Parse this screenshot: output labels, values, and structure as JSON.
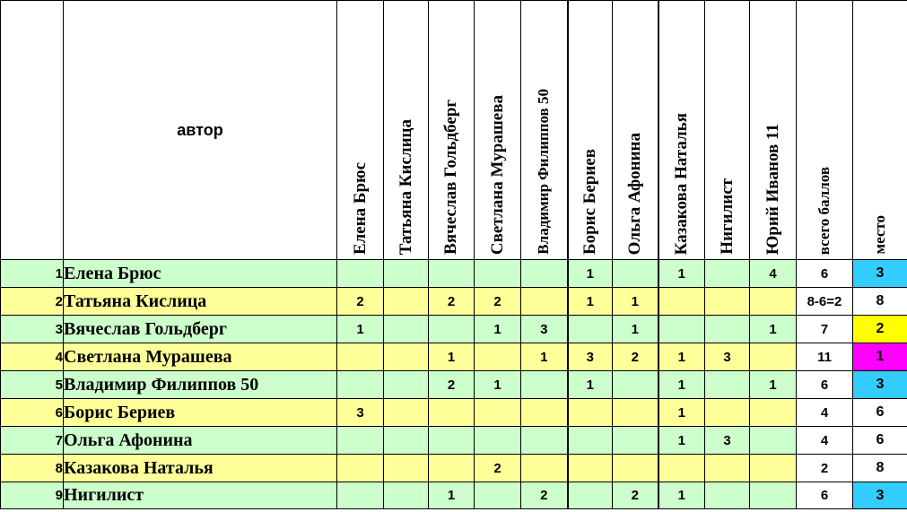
{
  "header": {
    "author_label": "автор",
    "judges": [
      "Елена Брюс",
      "Татьяна Кислица",
      "Вячеслав Гольдберг",
      "Светлана Мурашева",
      "Владимир Филиппов 50",
      "Борис Бериев",
      "Ольга Афонина",
      "Казакова Наталья",
      "Нигилист",
      "Юрий Иванов 11"
    ],
    "total_label": "всего баллов",
    "place_label": "место"
  },
  "rows": [
    {
      "num": "1",
      "name": "Елена Брюс",
      "scores": [
        "",
        "",
        "",
        "",
        "",
        "1",
        "",
        "1",
        "",
        "4"
      ],
      "total": "6",
      "place": "3",
      "place_color": "#33ccff"
    },
    {
      "num": "2",
      "name": "Татьяна Кислица",
      "scores": [
        "2",
        "",
        "2",
        "2",
        "",
        "1",
        "1",
        "",
        "",
        ""
      ],
      "total": "8-6=2",
      "place": "8",
      "place_color": "#ffffff"
    },
    {
      "num": "3",
      "name": "Вячеслав Гольдберг",
      "scores": [
        "1",
        "",
        "",
        "1",
        "3",
        "",
        "1",
        "",
        "",
        "1"
      ],
      "total": "7",
      "place": "2",
      "place_color": "#ffff00"
    },
    {
      "num": "4",
      "name": "Светлана Мурашева",
      "scores": [
        "",
        "",
        "1",
        "",
        "1",
        "3",
        "2",
        "1",
        "3",
        ""
      ],
      "total": "11",
      "place": "1",
      "place_color": "#ff00ff"
    },
    {
      "num": "5",
      "name": "Владимир Филиппов 50",
      "scores": [
        "",
        "",
        "2",
        "1",
        "",
        "1",
        "",
        "1",
        "",
        "1"
      ],
      "total": "6",
      "place": "3",
      "place_color": "#33ccff"
    },
    {
      "num": "6",
      "name": "Борис Бериев",
      "scores": [
        "3",
        "",
        "",
        "",
        "",
        "",
        "",
        "1",
        "",
        ""
      ],
      "total": "4",
      "place": "6",
      "place_color": "#ffffff"
    },
    {
      "num": "7",
      "name": "Ольга Афонина",
      "scores": [
        "",
        "",
        "",
        "",
        "",
        "",
        "",
        "1",
        "3",
        ""
      ],
      "total": "4",
      "place": "6",
      "place_color": "#ffffff"
    },
    {
      "num": "8",
      "name": "Казакова Наталья",
      "scores": [
        "",
        "",
        "",
        "2",
        "",
        "",
        "",
        "",
        "",
        ""
      ],
      "total": "2",
      "place": "8",
      "place_color": "#ffffff"
    },
    {
      "num": "9",
      "name": "Нигилист",
      "scores": [
        "",
        "",
        "1",
        "",
        "2",
        "",
        "2",
        "1",
        "",
        ""
      ],
      "total": "6",
      "place": "3",
      "place_color": "#33ccff"
    }
  ],
  "row_colors": {
    "odd": "#ccffcc",
    "even": "#ffff99"
  }
}
